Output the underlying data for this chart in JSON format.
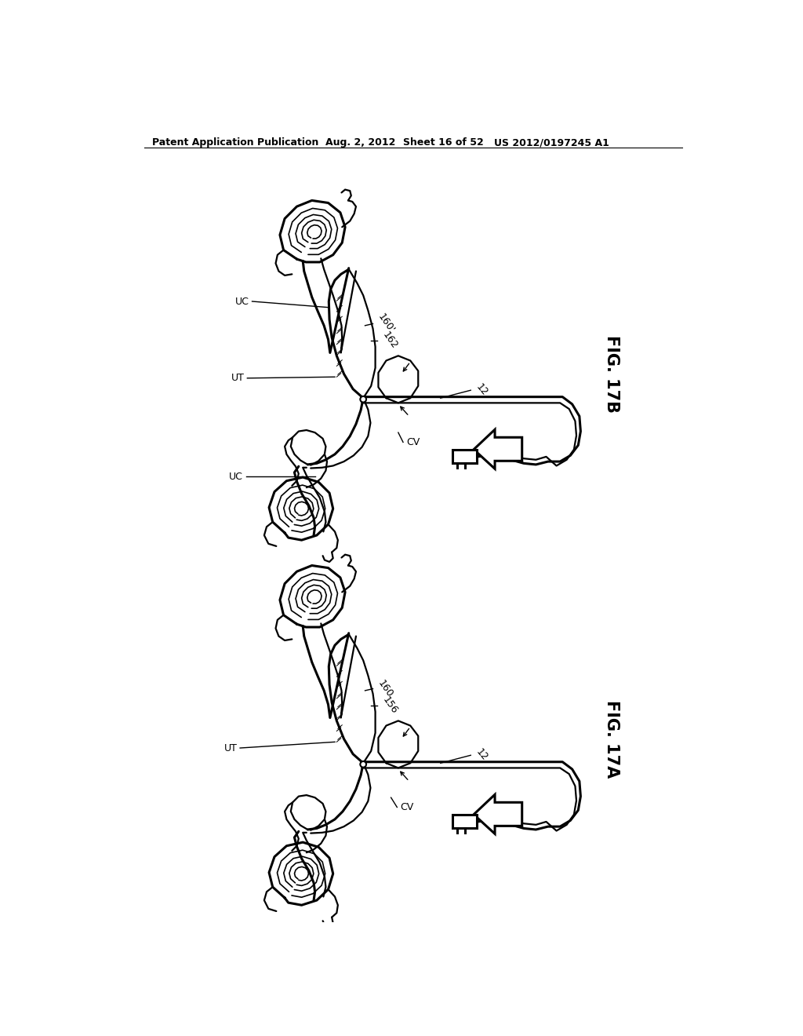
{
  "background_color": "#ffffff",
  "header_text": "Patent Application Publication",
  "header_date": "Aug. 2, 2012",
  "header_sheet": "Sheet 16 of 52",
  "header_patent": "US 2012/0197245 A1"
}
